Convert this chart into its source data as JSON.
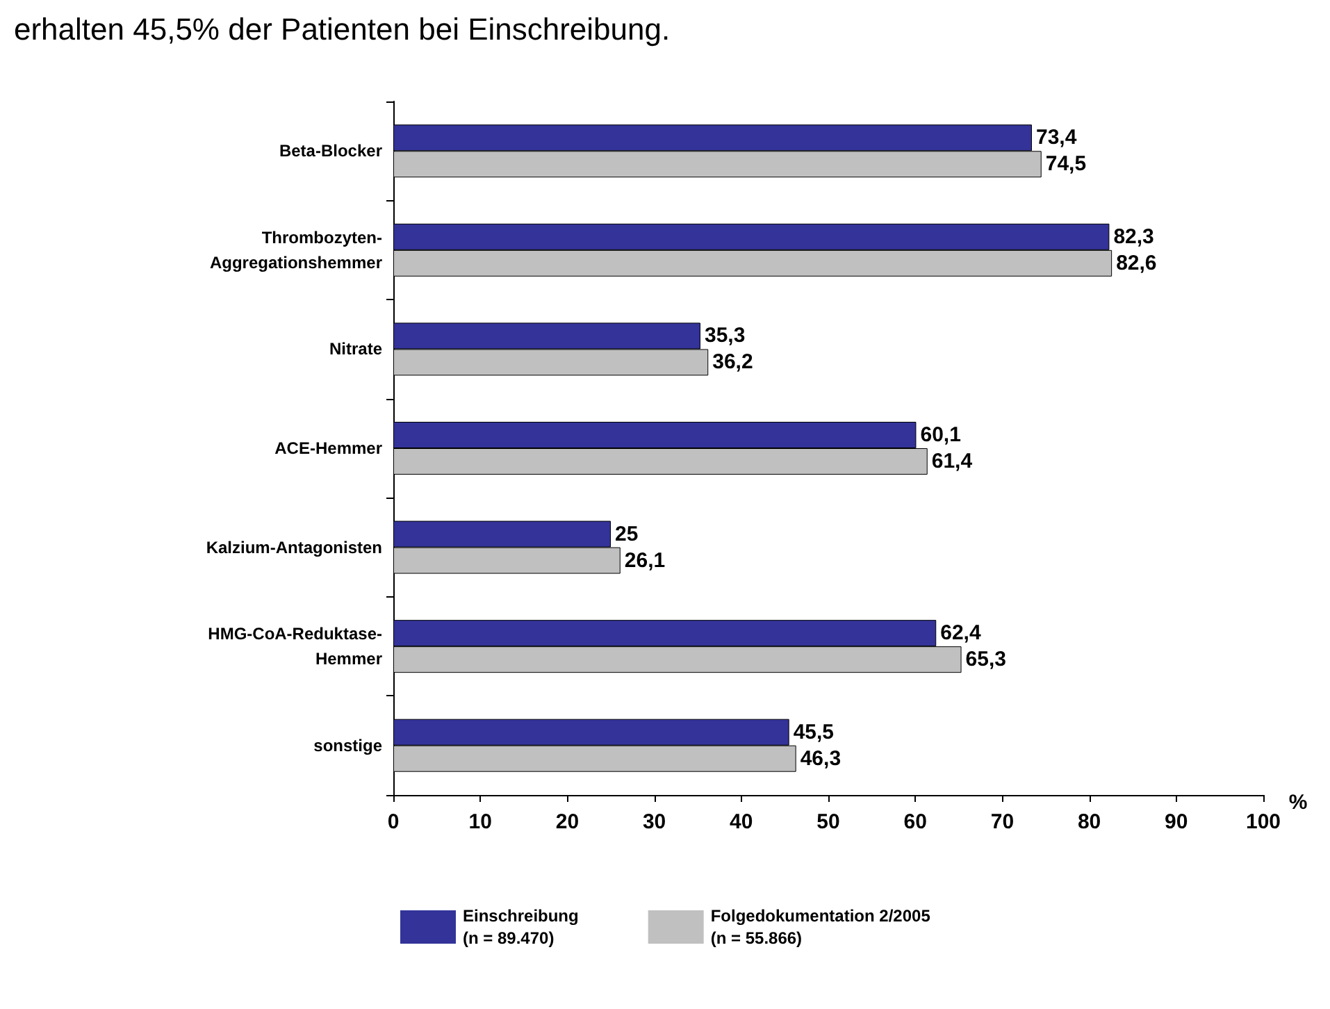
{
  "chart_data": {
    "type": "bar",
    "orientation": "horizontal",
    "annotations": [
      "erhalten 45,5% der Patienten bei Einschreibung."
    ],
    "xlabel": "%",
    "categories": [
      "Beta-Blocker",
      "Thrombozyten-\nAggregationshemmer",
      "Nitrate",
      "ACE-Hemmer",
      "Kalzium-Antagonisten",
      "HMG-CoA-Reduktase-\nHemmer",
      "sonstige"
    ],
    "series": [
      {
        "name": "Einschreibung\n(n = 89.470)",
        "color": "#333399",
        "values": [
          73.4,
          82.3,
          35.3,
          60.1,
          25,
          62.4,
          45.5
        ],
        "value_labels": [
          "73,4",
          "82,3",
          "35,3",
          "60,1",
          "25",
          "62,4",
          "45,5"
        ]
      },
      {
        "name": "Folgedokumentation 2/2005\n(n = 55.866)",
        "color": "#c0c0c0",
        "values": [
          74.5,
          82.6,
          36.2,
          61.4,
          26.1,
          65.3,
          46.3
        ],
        "value_labels": [
          "74,5",
          "82,6",
          "36,2",
          "61,4",
          "26,1",
          "65,3",
          "46,3"
        ]
      }
    ],
    "xlim": [
      0,
      100
    ],
    "xticks": [
      0,
      10,
      20,
      30,
      40,
      50,
      60,
      70,
      80,
      90,
      100
    ],
    "grid": false,
    "legend": "bottom left"
  }
}
